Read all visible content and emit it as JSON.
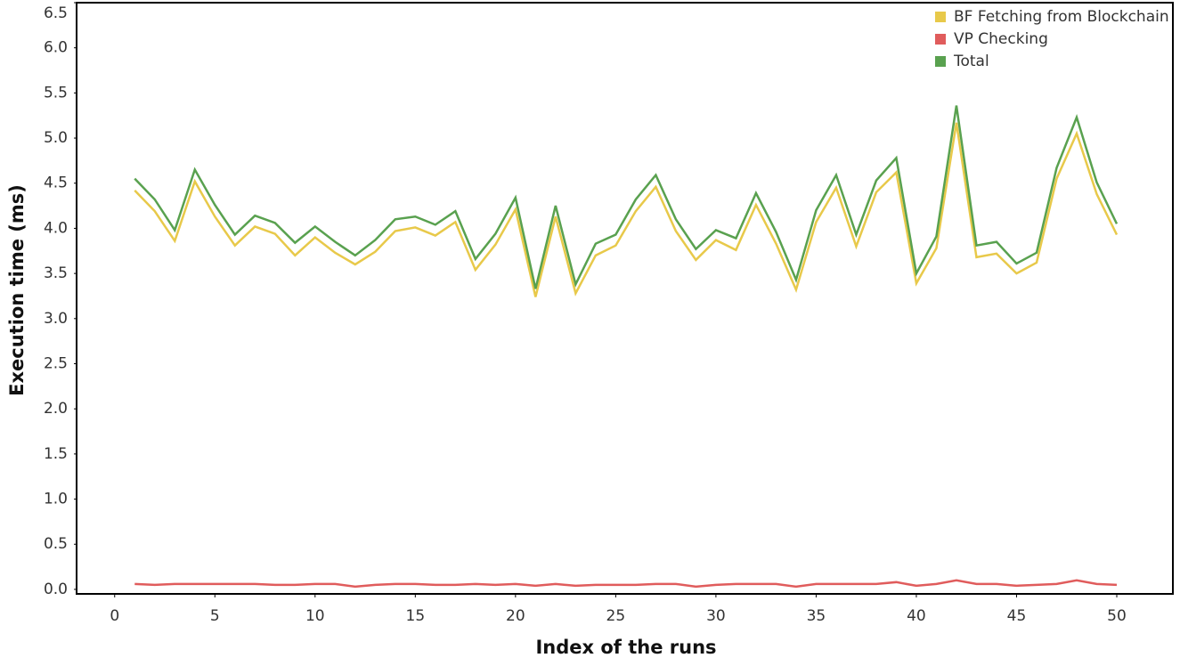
{
  "chart_data": {
    "type": "line",
    "x_label": "Index of the runs",
    "y_label": "Execution time (ms)",
    "x": [
      1,
      2,
      3,
      4,
      5,
      6,
      7,
      8,
      9,
      10,
      11,
      12,
      13,
      14,
      15,
      16,
      17,
      18,
      19,
      20,
      21,
      22,
      23,
      24,
      25,
      26,
      27,
      28,
      29,
      30,
      31,
      32,
      33,
      34,
      35,
      36,
      37,
      38,
      39,
      40,
      41,
      42,
      43,
      44,
      45,
      46,
      47,
      48,
      49,
      50
    ],
    "series": [
      {
        "name": "BF Fetching from Blockchain",
        "color": "#e8c94a",
        "values": [
          4.42,
          4.19,
          3.86,
          4.52,
          4.13,
          3.81,
          4.02,
          3.94,
          3.7,
          3.9,
          3.73,
          3.6,
          3.74,
          3.97,
          4.01,
          3.92,
          4.07,
          3.54,
          3.82,
          4.21,
          3.24,
          4.13,
          3.28,
          3.7,
          3.81,
          4.19,
          4.46,
          3.97,
          3.65,
          3.87,
          3.76,
          4.26,
          3.83,
          3.32,
          4.07,
          4.45,
          3.8,
          4.4,
          4.62,
          3.39,
          3.78,
          5.17,
          3.68,
          3.72,
          3.5,
          3.62,
          4.55,
          5.05,
          4.38,
          3.93
        ]
      },
      {
        "name": "VP Checking",
        "color": "#e05c5c",
        "values": [
          0.06,
          0.05,
          0.06,
          0.06,
          0.06,
          0.06,
          0.06,
          0.05,
          0.05,
          0.06,
          0.06,
          0.03,
          0.05,
          0.06,
          0.06,
          0.05,
          0.05,
          0.06,
          0.05,
          0.06,
          0.04,
          0.06,
          0.04,
          0.05,
          0.05,
          0.05,
          0.06,
          0.06,
          0.03,
          0.05,
          0.06,
          0.06,
          0.06,
          0.03,
          0.06,
          0.06,
          0.06,
          0.06,
          0.08,
          0.04,
          0.06,
          0.1,
          0.06,
          0.06,
          0.04,
          0.05,
          0.06,
          0.1,
          0.06,
          0.05
        ]
      },
      {
        "name": "Total",
        "color": "#59a14f",
        "values": [
          4.55,
          4.32,
          3.98,
          4.65,
          4.26,
          3.93,
          4.14,
          4.06,
          3.84,
          4.02,
          3.85,
          3.7,
          3.87,
          4.1,
          4.13,
          4.04,
          4.19,
          3.66,
          3.94,
          4.34,
          3.33,
          4.25,
          3.38,
          3.83,
          3.93,
          4.32,
          4.59,
          4.1,
          3.77,
          3.98,
          3.89,
          4.39,
          3.96,
          3.43,
          4.2,
          4.59,
          3.93,
          4.53,
          4.78,
          3.5,
          3.91,
          5.36,
          3.81,
          3.85,
          3.61,
          3.73,
          4.67,
          5.23,
          4.51,
          4.05
        ]
      }
    ],
    "xlim": [
      -1.9,
      52.8
    ],
    "xticks": [
      0,
      5,
      10,
      15,
      20,
      25,
      30,
      35,
      40,
      45,
      50
    ],
    "ylim": [
      -0.05,
      6.5
    ],
    "yticks": [
      {
        "value": 0,
        "label": "0.0"
      },
      {
        "value": 0.5,
        "label": "0.5"
      },
      {
        "value": 1,
        "label": "1.0"
      },
      {
        "value": 1.5,
        "label": "1.5"
      },
      {
        "value": 2,
        "label": "2.0"
      },
      {
        "value": 2.5,
        "label": "2.5"
      },
      {
        "value": 3,
        "label": "3.0"
      },
      {
        "value": 3.5,
        "label": "3.5"
      },
      {
        "value": 4,
        "label": "4.0"
      },
      {
        "value": 4.5,
        "label": "4.5"
      },
      {
        "value": 5,
        "label": "5.0"
      },
      {
        "value": 5.5,
        "label": "5.5"
      },
      {
        "value": 6,
        "label": "6.0"
      },
      {
        "value": 6.5,
        "label": "6.5"
      }
    ],
    "legend": "top-right"
  }
}
